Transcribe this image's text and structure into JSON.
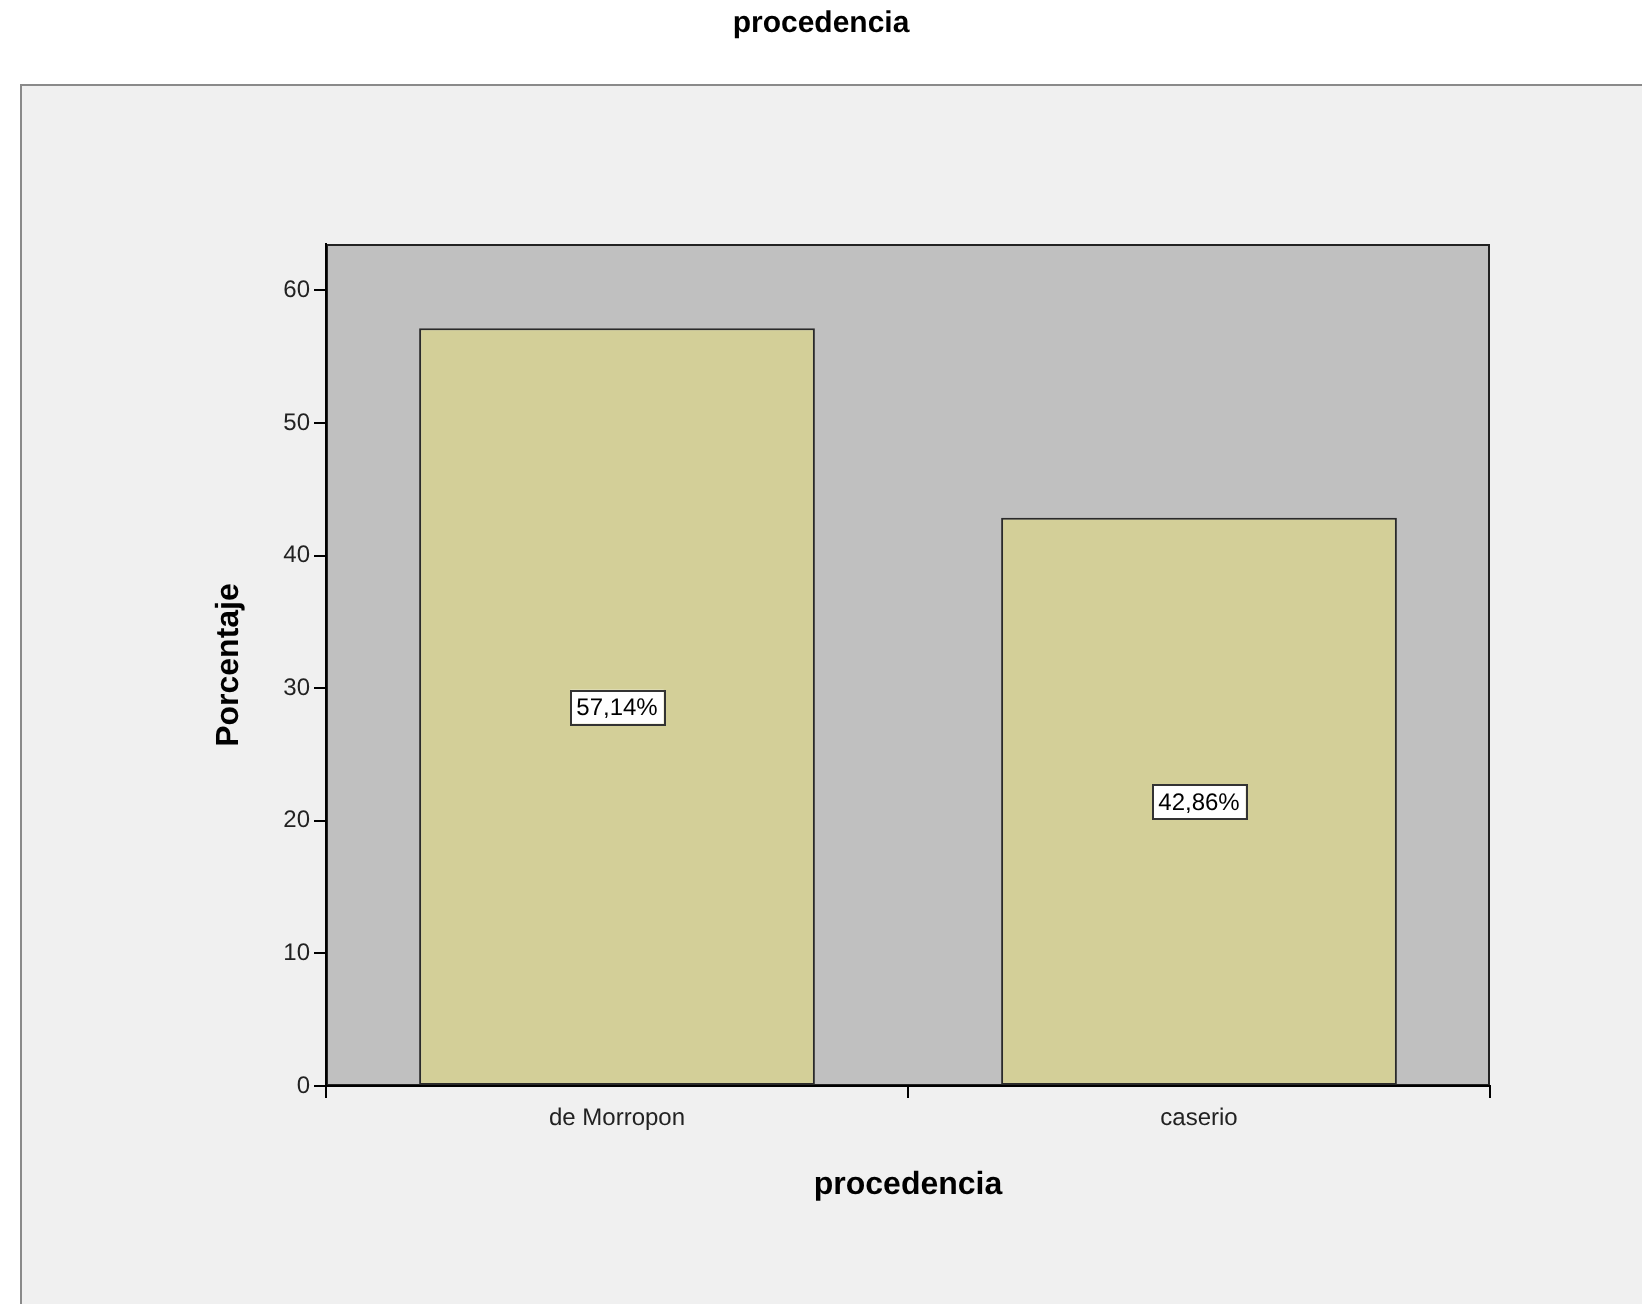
{
  "chart_data": {
    "type": "bar",
    "title": "procedencia",
    "xlabel": "procedencia",
    "ylabel": "Porcentaje",
    "categories": [
      "de Morropon",
      "caserio"
    ],
    "values": [
      57.14,
      42.86
    ],
    "value_labels": [
      "57,14%",
      "42,86%"
    ],
    "color": "#d3cf98",
    "ylim": [
      0,
      63.5
    ],
    "yticks": [
      0,
      10,
      20,
      30,
      40,
      50,
      60
    ]
  }
}
